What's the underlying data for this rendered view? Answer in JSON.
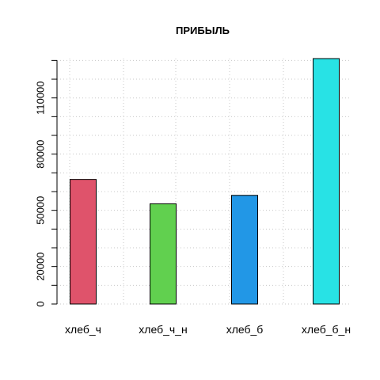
{
  "chart_data": {
    "type": "bar",
    "title": "ПРИБЫЛЬ",
    "xlabel": "",
    "ylabel": "",
    "categories": [
      "хлеб_ч",
      "хлеб_ч_н",
      "хлеб_б",
      "хлеб_б_н"
    ],
    "values": [
      66500,
      53500,
      58000,
      131000
    ],
    "colors": [
      "#DF536B",
      "#61D04F",
      "#2297E6",
      "#28E2E5"
    ],
    "y_ticks": [
      0,
      10000,
      20000,
      30000,
      40000,
      50000,
      60000,
      70000,
      80000,
      90000,
      100000,
      110000,
      120000,
      130000
    ],
    "y_tick_labels": [
      "0",
      "",
      "20000",
      "",
      "",
      "50000",
      "",
      "",
      "80000",
      "",
      "",
      "110000",
      "",
      ""
    ],
    "ylim": [
      0,
      131000
    ],
    "grid": true
  }
}
